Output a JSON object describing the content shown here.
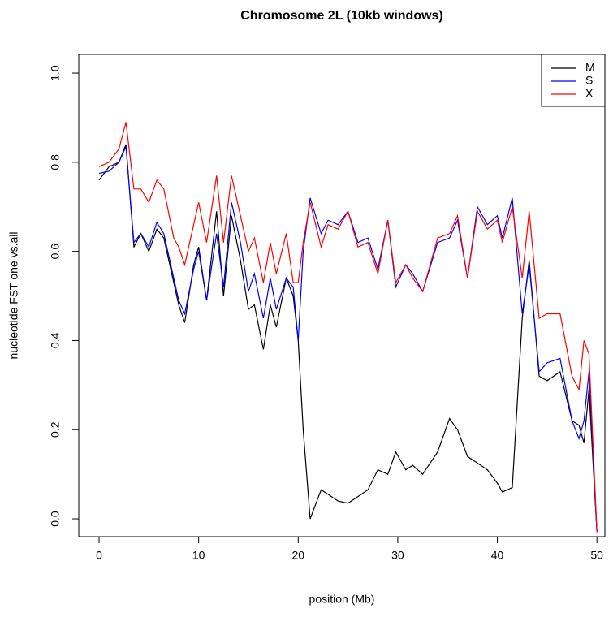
{
  "chart_data": {
    "type": "line",
    "title": "Chromosome 2L (10kb windows)",
    "xlabel": "position (Mb)",
    "ylabel": "nucleotide FST one vs.all",
    "x": [
      0,
      1,
      2,
      2.7,
      3.5,
      4.2,
      5,
      5.8,
      6.5,
      7.5,
      8,
      8.6,
      9.5,
      10,
      10.8,
      11.8,
      12.5,
      13.3,
      14.2,
      15,
      15.6,
      16.5,
      17.2,
      17.8,
      18.8,
      19.5,
      20,
      20.5,
      21.2,
      22.3,
      23,
      24,
      25,
      26,
      27,
      28,
      29,
      29.8,
      30.8,
      31.5,
      32.5,
      34,
      35.2,
      36,
      37,
      38,
      39,
      40,
      40.5,
      41.5,
      42.5,
      43.2,
      44.2,
      45,
      46.3,
      47.5,
      48.2,
      48.7,
      49.2,
      50
    ],
    "series": [
      {
        "name": "M",
        "color": "#000000",
        "values": [
          0.76,
          0.79,
          0.8,
          0.84,
          0.61,
          0.64,
          0.6,
          0.65,
          0.63,
          0.53,
          0.48,
          0.44,
          0.57,
          0.61,
          0.49,
          0.69,
          0.5,
          0.68,
          0.58,
          0.47,
          0.48,
          0.38,
          0.48,
          0.43,
          0.54,
          0.5,
          0.4,
          0.2,
          0.0,
          0.065,
          0.055,
          0.04,
          0.035,
          0.05,
          0.065,
          0.11,
          0.1,
          0.15,
          0.11,
          0.12,
          0.1,
          0.15,
          0.225,
          0.2,
          0.14,
          0.125,
          0.11,
          0.08,
          0.06,
          0.07,
          0.45,
          0.58,
          0.32,
          0.31,
          0.33,
          0.22,
          0.21,
          0.17,
          0.29,
          -0.03
        ]
      },
      {
        "name": "S",
        "color": "#0000ff",
        "values": [
          0.775,
          0.78,
          0.8,
          0.835,
          0.62,
          0.64,
          0.61,
          0.665,
          0.64,
          0.54,
          0.49,
          0.46,
          0.56,
          0.6,
          0.49,
          0.64,
          0.52,
          0.71,
          0.62,
          0.51,
          0.55,
          0.45,
          0.54,
          0.47,
          0.54,
          0.52,
          0.4,
          0.6,
          0.72,
          0.64,
          0.67,
          0.66,
          0.69,
          0.62,
          0.63,
          0.56,
          0.67,
          0.52,
          0.57,
          0.55,
          0.51,
          0.62,
          0.63,
          0.67,
          0.54,
          0.7,
          0.66,
          0.68,
          0.63,
          0.72,
          0.46,
          0.57,
          0.33,
          0.35,
          0.36,
          0.22,
          0.18,
          0.22,
          0.33,
          -0.03
        ]
      },
      {
        "name": "X",
        "color": "#ff0000",
        "values": [
          0.79,
          0.8,
          0.83,
          0.89,
          0.74,
          0.74,
          0.71,
          0.76,
          0.74,
          0.63,
          0.61,
          0.57,
          0.66,
          0.71,
          0.62,
          0.77,
          0.62,
          0.77,
          0.68,
          0.6,
          0.63,
          0.53,
          0.62,
          0.55,
          0.64,
          0.53,
          0.53,
          0.62,
          0.71,
          0.61,
          0.66,
          0.65,
          0.69,
          0.61,
          0.62,
          0.55,
          0.67,
          0.53,
          0.57,
          0.54,
          0.51,
          0.63,
          0.64,
          0.68,
          0.54,
          0.69,
          0.65,
          0.67,
          0.62,
          0.7,
          0.54,
          0.69,
          0.45,
          0.46,
          0.46,
          0.32,
          0.29,
          0.4,
          0.37,
          -0.03
        ]
      }
    ],
    "xlim": [
      -2.04,
      50.8
    ],
    "ylim": [
      -0.04,
      1.042
    ],
    "xticks": [
      0,
      10,
      20,
      30,
      40,
      50
    ],
    "yticks": [
      {
        "value": 0,
        "label": "0.0"
      },
      0.2,
      0.4,
      0.6,
      0.8,
      {
        "value": 1,
        "label": "1.0"
      }
    ],
    "legend": "topright"
  }
}
